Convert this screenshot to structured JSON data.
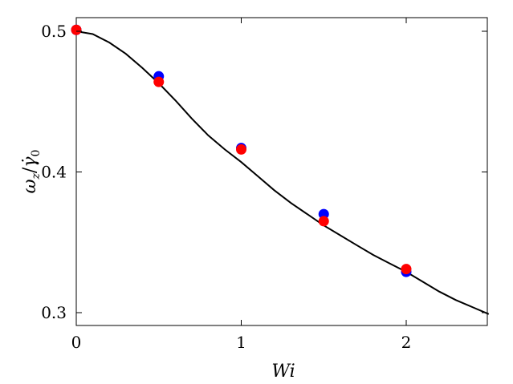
{
  "chart_data": {
    "type": "scatter",
    "xlabel": "Wi",
    "ylabel": "ω_z/γ̇_0",
    "xlim": [
      0,
      2.5
    ],
    "ylim": [
      0.29,
      0.51
    ],
    "x_ticks": [
      0,
      1,
      2
    ],
    "y_ticks": [
      0.3,
      0.4,
      0.5
    ],
    "x_tick_labels": [
      "0",
      "1",
      "2"
    ],
    "y_tick_labels": [
      "0.3",
      "0.4",
      "0.5"
    ],
    "grid": false,
    "series": [
      {
        "kind": "line",
        "color": "#000000",
        "x": [
          0,
          0.1,
          0.2,
          0.3,
          0.4,
          0.5,
          0.6,
          0.7,
          0.8,
          0.9,
          1.0,
          1.1,
          1.2,
          1.3,
          1.4,
          1.5,
          1.6,
          1.7,
          1.8,
          1.9,
          2.0,
          2.1,
          2.2,
          2.3,
          2.4,
          2.5
        ],
        "y": [
          0.5,
          0.498,
          0.492,
          0.484,
          0.474,
          0.463,
          0.451,
          0.438,
          0.426,
          0.416,
          0.407,
          0.397,
          0.387,
          0.378,
          0.37,
          0.362,
          0.355,
          0.348,
          0.341,
          0.335,
          0.329,
          0.322,
          0.315,
          0.309,
          0.304,
          0.299
        ]
      },
      {
        "kind": "points",
        "color": "#0000ff",
        "x": [
          0,
          0.5,
          1.0,
          1.5,
          2.0
        ],
        "y": [
          0.501,
          0.468,
          0.417,
          0.37,
          0.329
        ]
      },
      {
        "kind": "points",
        "color": "#ff0000",
        "x": [
          0,
          0.5,
          1.0,
          1.5,
          2.0
        ],
        "y": [
          0.501,
          0.464,
          0.416,
          0.365,
          0.331
        ]
      }
    ]
  }
}
